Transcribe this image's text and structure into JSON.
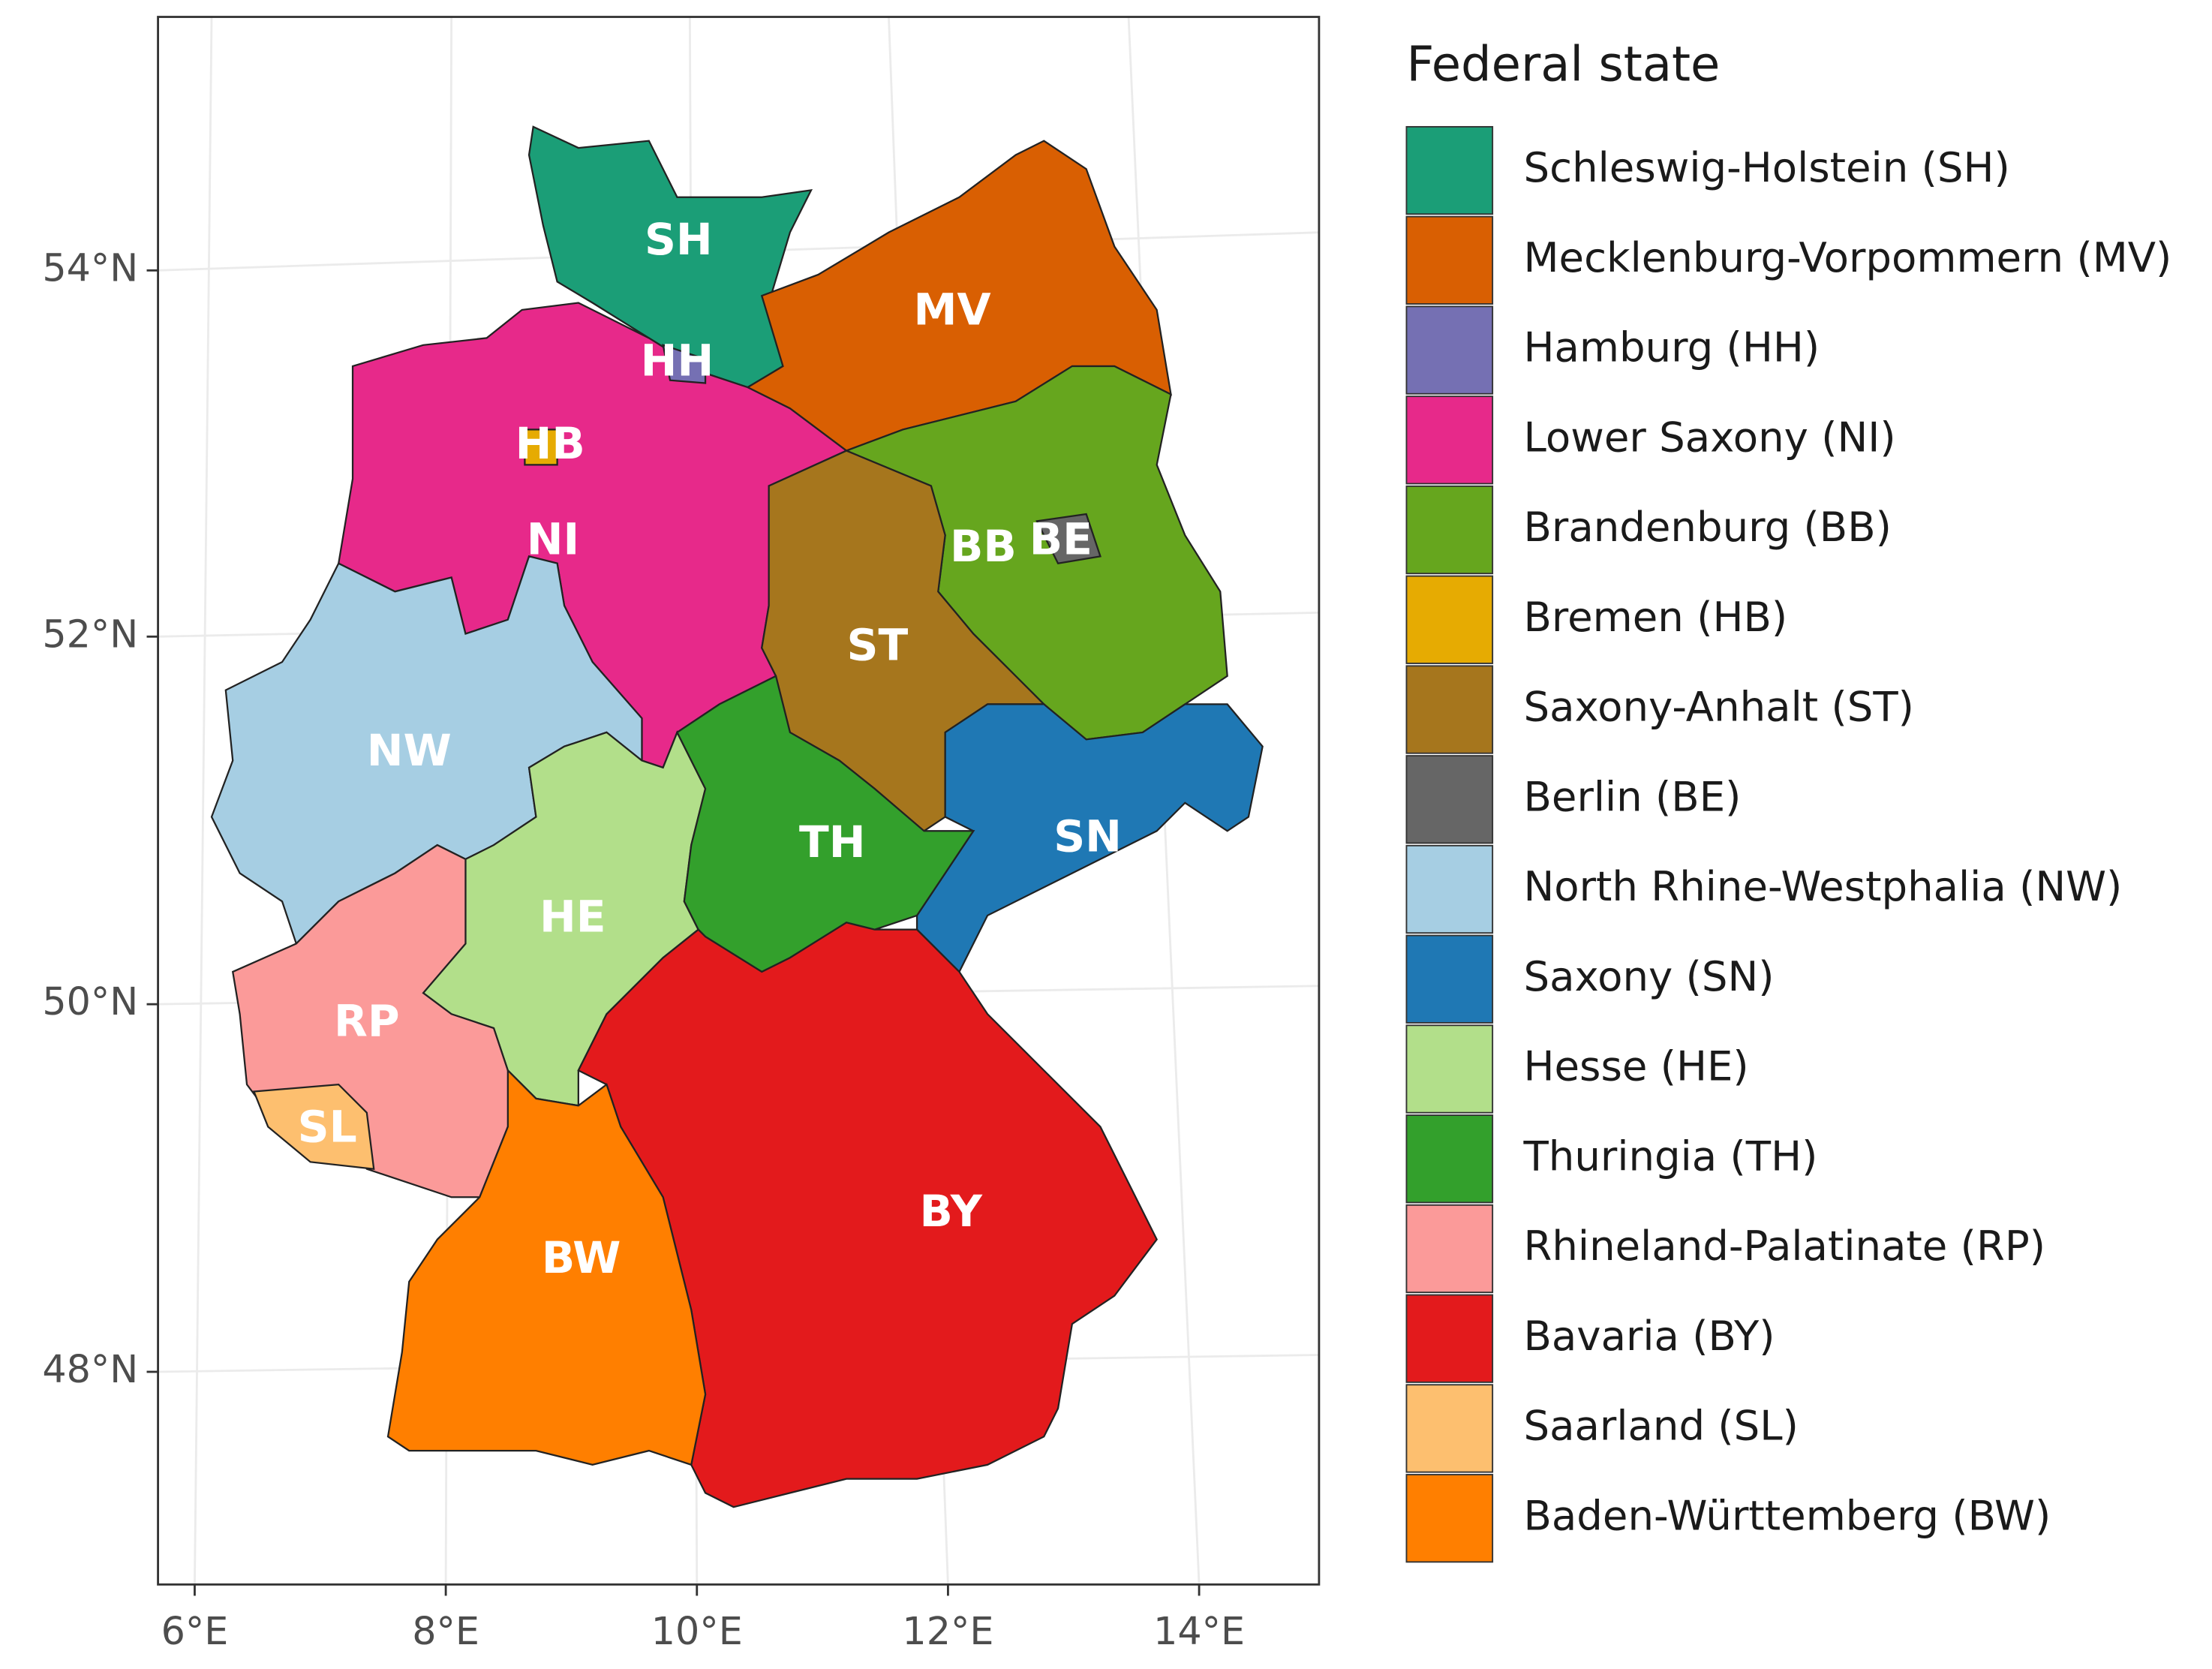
{
  "map": {
    "x_axis": {
      "ticks": [
        "6°E",
        "8°E",
        "10°E",
        "12°E",
        "14°E"
      ]
    },
    "y_axis": {
      "ticks": [
        "54°N",
        "52°N",
        "50°N",
        "48°N"
      ]
    },
    "legend": {
      "title": "Federal state",
      "items": [
        {
          "label": "Schleswig-Holstein (SH)",
          "abbr": "SH",
          "color": "#1b9e77"
        },
        {
          "label": "Mecklenburg-Vorpommern (MV)",
          "abbr": "MV",
          "color": "#d95f02"
        },
        {
          "label": "Hamburg (HH)",
          "abbr": "HH",
          "color": "#7570b3"
        },
        {
          "label": "Lower Saxony (NI)",
          "abbr": "NI",
          "color": "#e7298a"
        },
        {
          "label": "Brandenburg (BB)",
          "abbr": "BB",
          "color": "#66a61e"
        },
        {
          "label": "Bremen (HB)",
          "abbr": "HB",
          "color": "#e6ab02"
        },
        {
          "label": "Saxony-Anhalt (ST)",
          "abbr": "ST",
          "color": "#a6761d"
        },
        {
          "label": "Berlin (BE)",
          "abbr": "BE",
          "color": "#666666"
        },
        {
          "label": "North Rhine-Westphalia (NW)",
          "abbr": "NW",
          "color": "#a6cee3"
        },
        {
          "label": "Saxony (SN)",
          "abbr": "SN",
          "color": "#1f78b4"
        },
        {
          "label": "Hesse (HE)",
          "abbr": "HE",
          "color": "#b2df8a"
        },
        {
          "label": "Thuringia (TH)",
          "abbr": "TH",
          "color": "#33a02c"
        },
        {
          "label": "Rhineland-Palatinate (RP)",
          "abbr": "RP",
          "color": "#fb9a99"
        },
        {
          "label": "Bavaria (BY)",
          "abbr": "BY",
          "color": "#e31a1c"
        },
        {
          "label": "Saarland (SL)",
          "abbr": "SL",
          "color": "#fdbf6f"
        },
        {
          "label": "Baden-Württemberg (BW)",
          "abbr": "BW",
          "color": "#ff7f00"
        }
      ]
    }
  }
}
